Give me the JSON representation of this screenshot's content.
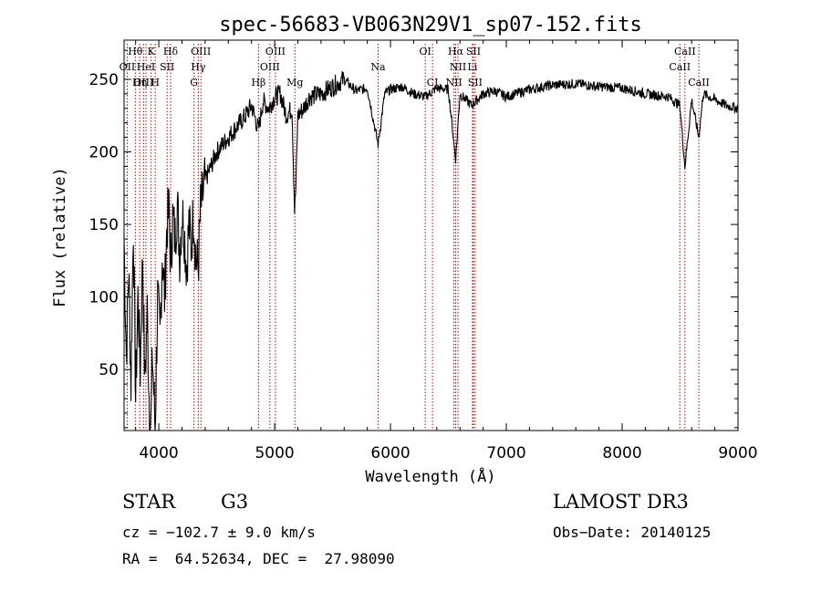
{
  "chart_data": {
    "type": "line",
    "title": "spec-56683-VB063N29V1_sp07-152.fits",
    "xlabel": "Wavelength (Å)",
    "ylabel": "Flux (relative)",
    "xlim": [
      3700,
      9000
    ],
    "ylim": [
      8,
      277
    ],
    "x_ticks": [
      4000,
      5000,
      6000,
      7000,
      8000,
      9000
    ],
    "y_ticks": [
      50,
      100,
      150,
      200,
      250
    ],
    "colors": {
      "line": "#000000",
      "marker": "#cc0000",
      "axes": "#000000"
    },
    "series": [
      {
        "name": "flux",
        "x": [
          3700,
          3720,
          3740,
          3760,
          3780,
          3800,
          3820,
          3840,
          3860,
          3880,
          3900,
          3920,
          3933,
          3945,
          3968,
          3990,
          4010,
          4030,
          4050,
          4070,
          4090,
          4102,
          4120,
          4140,
          4160,
          4180,
          4200,
          4220,
          4240,
          4260,
          4280,
          4300,
          4320,
          4340,
          4360,
          4380,
          4400,
          4450,
          4500,
          4550,
          4600,
          4650,
          4700,
          4750,
          4800,
          4861,
          4900,
          4950,
          5000,
          5050,
          5100,
          5150,
          5172,
          5183,
          5200,
          5250,
          5300,
          5400,
          5500,
          5600,
          5700,
          5800,
          5893,
          5950,
          6000,
          6100,
          6200,
          6300,
          6400,
          6500,
          6563,
          6600,
          6700,
          6800,
          6900,
          7000,
          7200,
          7400,
          7600,
          7800,
          8000,
          8200,
          8400,
          8498,
          8542,
          8600,
          8662,
          8700,
          8800,
          8900,
          9000
        ],
        "values": [
          140,
          60,
          120,
          40,
          150,
          30,
          100,
          50,
          130,
          40,
          90,
          20,
          15,
          60,
          10,
          100,
          70,
          130,
          100,
          150,
          160,
          120,
          155,
          140,
          165,
          130,
          160,
          145,
          120,
          150,
          135,
          160,
          125,
          120,
          160,
          170,
          180,
          190,
          200,
          205,
          210,
          215,
          220,
          225,
          232,
          215,
          235,
          230,
          238,
          240,
          225,
          230,
          160,
          175,
          225,
          230,
          238,
          240,
          245,
          250,
          242,
          244,
          205,
          240,
          243,
          245,
          240,
          238,
          244,
          243,
          195,
          240,
          232,
          240,
          242,
          238,
          243,
          246,
          247,
          245,
          244,
          240,
          238,
          232,
          190,
          236,
          210,
          240,
          236,
          232,
          230
        ]
      }
    ],
    "lines": [
      {
        "name": "H-theta",
        "wavelength": 3797,
        "label": "Hθ",
        "row": 0
      },
      {
        "name": "OII",
        "wavelength": 3727,
        "label": "OII",
        "row": 1
      },
      {
        "name": "OIII-3868",
        "wavelength": 3868,
        "label": "OIII",
        "row": 2
      },
      {
        "name": "H-eta",
        "wavelength": 3835,
        "label": "Hη",
        "row": 2
      },
      {
        "name": "HeI",
        "wavelength": 3889,
        "label": "HeI",
        "row": 1
      },
      {
        "name": "K",
        "wavelength": 3934,
        "label": "K",
        "row": 0
      },
      {
        "name": "H",
        "wavelength": 3969,
        "label": "H",
        "row": 2
      },
      {
        "name": "SII-4072",
        "wavelength": 4072,
        "label": "SII",
        "row": 1
      },
      {
        "name": "H-delta",
        "wavelength": 4102,
        "label": "Hδ",
        "row": 0
      },
      {
        "name": "G",
        "wavelength": 4304,
        "label": "G",
        "row": 2
      },
      {
        "name": "H-gamma",
        "wavelength": 4341,
        "label": "Hγ",
        "row": 1
      },
      {
        "name": "OIII-4363",
        "wavelength": 4363,
        "label": "OIII",
        "row": 0
      },
      {
        "name": "H-beta",
        "wavelength": 4861,
        "label": "Hβ",
        "row": 2
      },
      {
        "name": "OIII-4959",
        "wavelength": 4959,
        "label": "OIII",
        "row": 1
      },
      {
        "name": "OIII-5007",
        "wavelength": 5007,
        "label": "OIII",
        "row": 0
      },
      {
        "name": "Mg",
        "wavelength": 5175,
        "label": "Mg",
        "row": 2
      },
      {
        "name": "Na",
        "wavelength": 5893,
        "label": "Na",
        "row": 1
      },
      {
        "name": "OI",
        "wavelength": 6300,
        "label": "OI",
        "row": 0
      },
      {
        "name": "CaI",
        "wavelength": 6363,
        "label": "CI",
        "row": 2
      },
      {
        "name": "NII-6548",
        "wavelength": 6548,
        "label": "NII",
        "row": 2
      },
      {
        "name": "H-alpha",
        "wavelength": 6563,
        "label": "Hα",
        "row": 0
      },
      {
        "name": "NII-6583",
        "wavelength": 6583,
        "label": "NII",
        "row": 1
      },
      {
        "name": "Li",
        "wavelength": 6708,
        "label": "Li",
        "row": 1
      },
      {
        "name": "SII-6716",
        "wavelength": 6716,
        "label": "SII",
        "row": 0
      },
      {
        "name": "SII-6731",
        "wavelength": 6731,
        "label": "SII",
        "row": 2
      },
      {
        "name": "CaII-8498",
        "wavelength": 8498,
        "label": "CaII",
        "row": 1
      },
      {
        "name": "CaII-8542",
        "wavelength": 8542,
        "label": "CaII",
        "row": 0
      },
      {
        "name": "CaII-8662",
        "wavelength": 8662,
        "label": "CaII",
        "row": 2
      }
    ]
  },
  "info": {
    "class": "STAR",
    "subclass": "G3",
    "survey": "LAMOST DR3",
    "cz": "cz = −102.7 ± 9.0 km/s",
    "obs_date": "Obs−Date: 20140125",
    "radec": "RA =  64.52634, DEC =  27.98090"
  }
}
